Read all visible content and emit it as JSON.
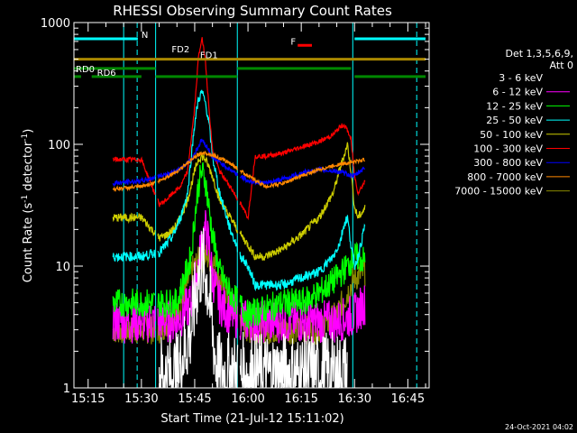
{
  "chart_data": {
    "type": "line",
    "title": "RHESSI Observing Summary Count Rates",
    "xlabel": "Start Time (21-Jul-12 15:11:02)",
    "ylabel_main": "Count Rate (s",
    "ylabel_sup1": "-1",
    "ylabel_mid": " detector",
    "ylabel_sup2": "-1",
    "ylabel_end": ")",
    "yscale": "log",
    "ylim": [
      1,
      1000
    ],
    "xlim_min": [
      911,
      1011
    ],
    "x_ticks": [
      {
        "t": 915,
        "label": "15:15"
      },
      {
        "t": 930,
        "label": "15:30"
      },
      {
        "t": 945,
        "label": "15:45"
      },
      {
        "t": 960,
        "label": "16:00"
      },
      {
        "t": 975,
        "label": "16:15"
      },
      {
        "t": 990,
        "label": "16:30"
      },
      {
        "t": 1005,
        "label": "16:45"
      }
    ],
    "y_ticks": [
      {
        "v": 1,
        "label": "1"
      },
      {
        "v": 10,
        "label": "10"
      },
      {
        "v": 100,
        "label": "100"
      },
      {
        "v": 1000,
        "label": "1000"
      }
    ],
    "legend_header": [
      "Det 1,3,5,6,9,",
      "Att 0"
    ],
    "series": [
      {
        "name": "3 - 6 keV",
        "color": "#000000",
        "x": [
          935,
          940,
          944,
          945,
          946,
          947,
          948,
          949,
          950,
          951,
          952,
          955,
          960,
          965,
          970,
          975,
          980,
          985,
          988
        ],
        "y": [
          1.3,
          1.3,
          3,
          5,
          8,
          10,
          9,
          6,
          3,
          1.6,
          1.3,
          1.3,
          1.3,
          1.3,
          1.3,
          1.3,
          1.3,
          1.3,
          1.3
        ]
      },
      {
        "name": "6 - 12 keV",
        "color": "#ff00ff",
        "x": [
          922,
          930,
          935,
          940,
          944,
          946,
          947,
          948,
          949,
          950,
          952,
          955,
          960,
          970,
          975,
          980,
          985,
          990,
          993
        ],
        "y": [
          3.5,
          3.5,
          3.5,
          3.5,
          5,
          10,
          16,
          20,
          15,
          8,
          5,
          4,
          3.5,
          3.5,
          3.5,
          3.5,
          3.5,
          4,
          5
        ]
      },
      {
        "name": "12 - 25 keV",
        "color": "#00ff00",
        "x": [
          922,
          930,
          935,
          940,
          944,
          945,
          946,
          947,
          948,
          949,
          950,
          952,
          955,
          960,
          970,
          975,
          980,
          985,
          988,
          990,
          993
        ],
        "y": [
          5,
          5,
          5,
          5,
          12,
          25,
          45,
          60,
          50,
          30,
          18,
          9,
          6,
          4,
          5,
          5,
          6,
          8,
          10,
          12,
          11
        ]
      },
      {
        "name": "25 - 50 keV",
        "color": "#00ffff",
        "x": [
          922,
          930,
          935,
          937,
          939,
          941,
          943,
          945,
          946,
          947,
          948,
          949,
          950,
          952,
          955,
          958,
          960,
          962,
          965,
          970,
          975,
          980,
          984,
          986,
          987,
          988,
          989,
          990,
          991,
          993
        ],
        "y": [
          12,
          12,
          13,
          15,
          18,
          25,
          40,
          150,
          230,
          270,
          220,
          150,
          80,
          40,
          20,
          12,
          10,
          7,
          7,
          7,
          8,
          9,
          12,
          16,
          22,
          25,
          15,
          10,
          12,
          22
        ]
      },
      {
        "name": "50 - 100 keV",
        "color": "#cccc00",
        "x": [
          922,
          930,
          935,
          937,
          939,
          941,
          943,
          945,
          946,
          947,
          948,
          949,
          950,
          952,
          955,
          958,
          960,
          962,
          965,
          970,
          975,
          980,
          984,
          986,
          987,
          988,
          989,
          990,
          991,
          993
        ],
        "y": [
          25,
          25,
          17,
          18,
          20,
          25,
          35,
          60,
          75,
          80,
          75,
          65,
          55,
          35,
          25,
          18,
          15,
          12,
          12,
          14,
          18,
          25,
          40,
          65,
          80,
          100,
          60,
          30,
          25,
          30
        ]
      },
      {
        "name": "100 - 300 keV",
        "color": "#ff0000",
        "x": [
          922,
          930,
          935,
          937,
          939,
          941,
          943,
          945,
          946,
          947,
          948,
          949,
          950,
          952,
          955,
          958,
          960,
          962,
          965,
          970,
          975,
          980,
          984,
          986,
          987,
          988,
          989,
          990,
          991,
          993
        ],
        "y": [
          75,
          75,
          32,
          35,
          40,
          45,
          60,
          200,
          500,
          750,
          500,
          200,
          90,
          60,
          45,
          32,
          25,
          80,
          80,
          85,
          95,
          105,
          120,
          140,
          145,
          130,
          110,
          55,
          40,
          50
        ]
      },
      {
        "name": "300 - 800 keV",
        "color": "#0000ff",
        "x": [
          922,
          930,
          935,
          940,
          944,
          946,
          947,
          948,
          949,
          950,
          955,
          960,
          965,
          970,
          975,
          980,
          985,
          990,
          993
        ],
        "y": [
          48,
          50,
          55,
          60,
          75,
          95,
          110,
          100,
          90,
          78,
          62,
          50,
          48,
          52,
          58,
          62,
          60,
          55,
          65
        ]
      },
      {
        "name": "800 - 7000 keV",
        "color": "#ff8800",
        "x": [
          922,
          930,
          935,
          940,
          945,
          947,
          948,
          950,
          955,
          960,
          965,
          970,
          975,
          980,
          985,
          990,
          993
        ],
        "y": [
          43,
          45,
          50,
          60,
          78,
          85,
          85,
          82,
          70,
          55,
          45,
          48,
          55,
          62,
          68,
          72,
          75
        ]
      },
      {
        "name": "7000 - 15000 keV",
        "color": "#888800",
        "x": [
          922,
          930,
          935,
          940,
          944,
          946,
          948,
          950,
          952,
          955,
          960,
          965,
          970,
          975,
          980,
          985,
          988,
          990,
          993
        ],
        "y": [
          3,
          3,
          3,
          4,
          9,
          11,
          12,
          11,
          8,
          5,
          3,
          3,
          3,
          3,
          3,
          4,
          6,
          8,
          9
        ]
      }
    ],
    "flags": [
      {
        "label": "N",
        "color": "#00ffff",
        "y": 735,
        "segments": [
          [
            911,
            929
          ],
          [
            990,
            1010
          ]
        ],
        "label_t": 929.5
      },
      {
        "label": "FD2",
        "color": "#aa8800",
        "y": 560,
        "segments": [],
        "label_t": 938
      },
      {
        "label": "FD1",
        "color": "#aa8800",
        "y": 500,
        "segments": [
          [
            911,
            1010
          ]
        ],
        "label_t": 946
      },
      {
        "label": "F",
        "color": "#ff0000",
        "y": 650,
        "segments": [
          [
            974,
            978
          ]
        ],
        "label_t": 971.5
      },
      {
        "label": "RD0",
        "color": "#008800",
        "y": 420,
        "segments": [
          [
            911,
            934
          ],
          [
            957,
            989
          ]
        ],
        "label_t": 911
      },
      {
        "label": "RD6",
        "color": "#008800",
        "y": 360,
        "segments": [
          [
            911,
            913
          ],
          [
            916,
            930
          ],
          [
            934,
            957
          ],
          [
            990,
            1010
          ]
        ],
        "label_t": 917
      }
    ],
    "saa_dashed": [
      928.8,
      1007.5
    ],
    "night_solid": [
      911,
      925,
      934,
      957,
      989.5
    ],
    "footer": "24-Oct-2021 04:02"
  }
}
